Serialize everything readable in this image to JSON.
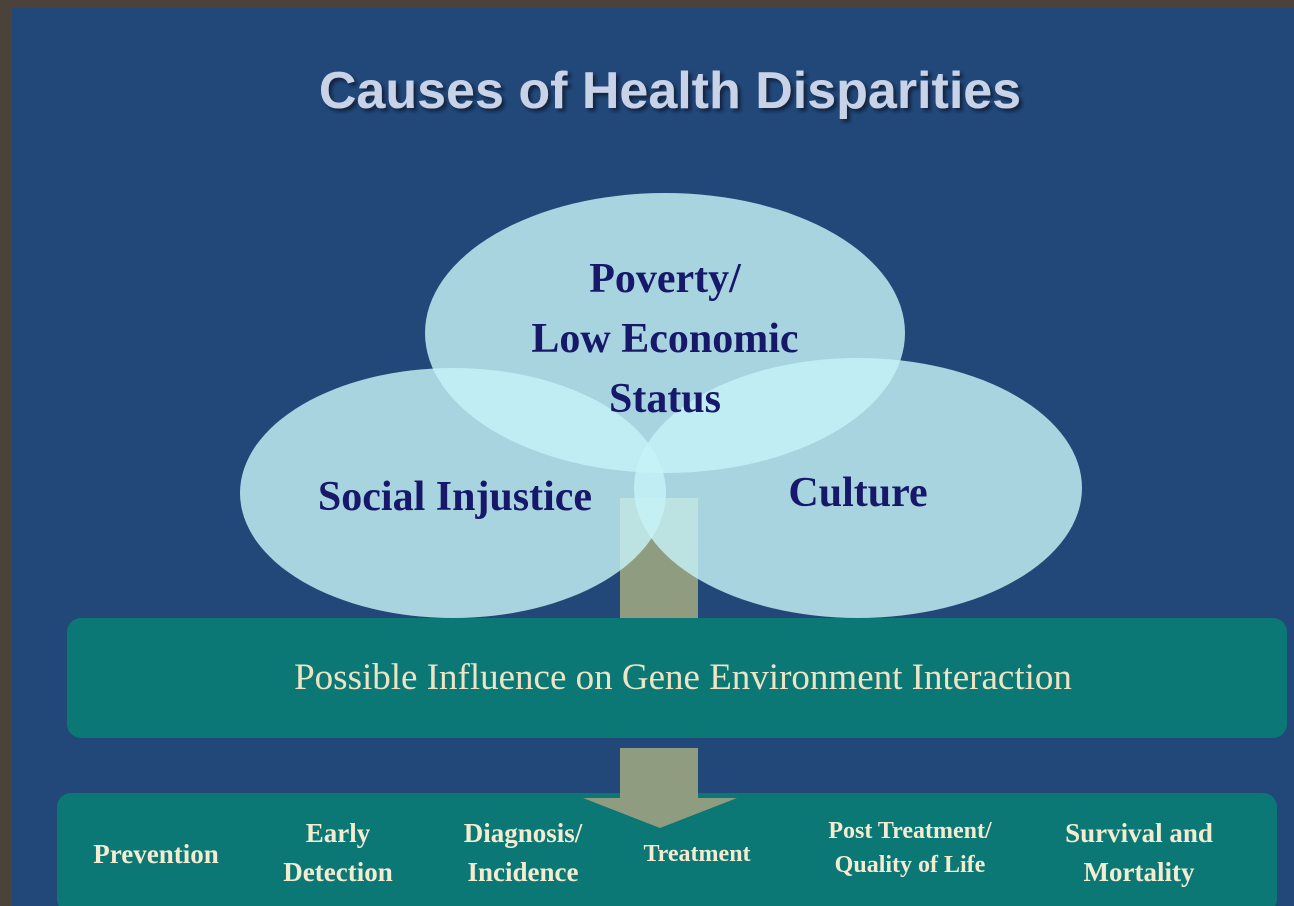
{
  "title": "Causes of Health Disparities",
  "circles": [
    {
      "lines": [
        "Poverty/",
        "Low Economic",
        "Status"
      ]
    },
    {
      "lines": [
        "Social Injustice"
      ]
    },
    {
      "lines": [
        "Culture"
      ]
    }
  ],
  "banner": "Possible Influence on Gene Environment Interaction",
  "stages": [
    {
      "lines": [
        "Prevention"
      ]
    },
    {
      "lines": [
        "Early",
        "Detection"
      ]
    },
    {
      "lines": [
        "Diagnosis/",
        "Incidence"
      ]
    },
    {
      "lines": [
        "Treatment"
      ]
    },
    {
      "lines": [
        "Post Treatment/",
        "Quality  of Life"
      ]
    },
    {
      "lines": [
        "Survival and",
        "Mortality"
      ]
    }
  ]
}
